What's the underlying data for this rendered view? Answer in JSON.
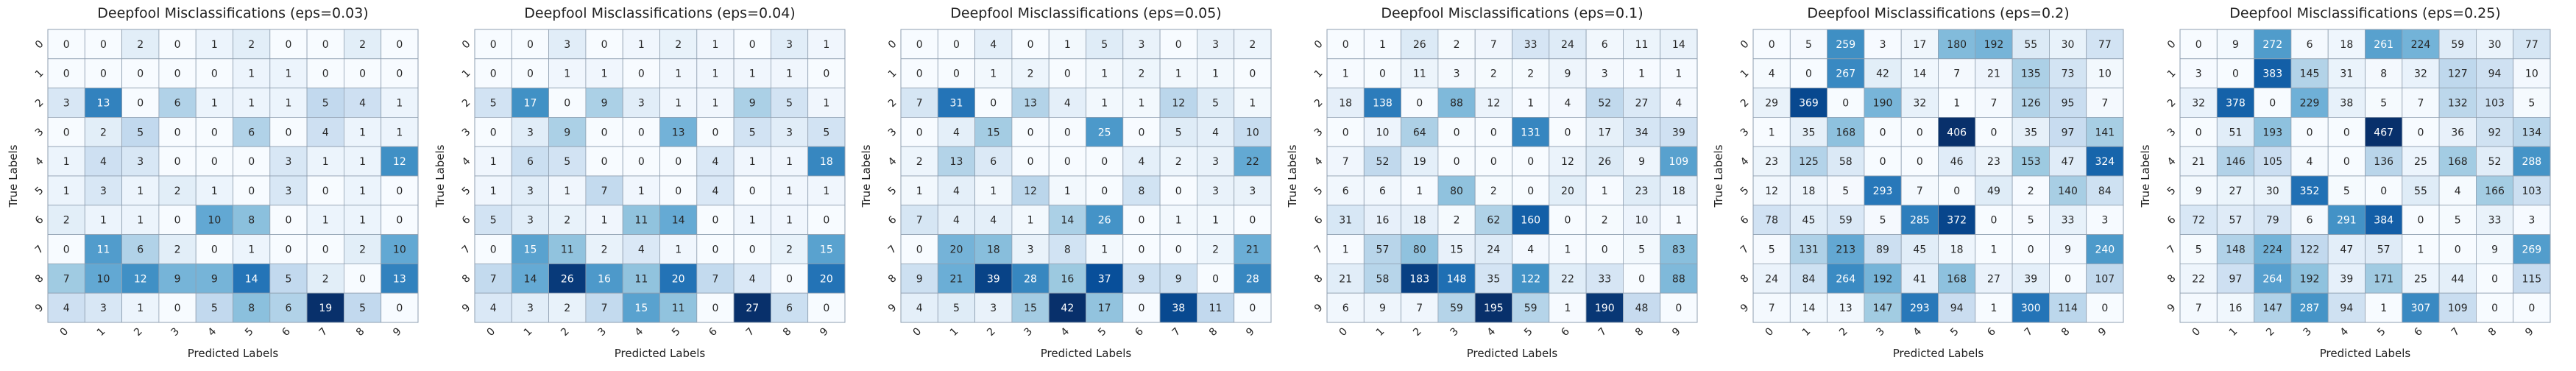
{
  "chart_data": [
    {
      "type": "heatmap",
      "title": "Deepfool Misclassifications (eps=0.03)",
      "xlabel": "Predicted Labels",
      "ylabel": "True Labels",
      "x_ticks": [
        "0",
        "1",
        "2",
        "3",
        "4",
        "5",
        "6",
        "7",
        "8",
        "9"
      ],
      "y_ticks": [
        "0",
        "1",
        "2",
        "3",
        "4",
        "5",
        "6",
        "7",
        "8",
        "9"
      ],
      "colormap": "Blues",
      "vmin": 0,
      "vmax": 19,
      "grid": true,
      "values": [
        [
          0,
          0,
          2,
          0,
          1,
          2,
          0,
          0,
          2,
          0
        ],
        [
          0,
          0,
          0,
          0,
          0,
          1,
          1,
          0,
          0,
          0
        ],
        [
          3,
          13,
          0,
          6,
          1,
          1,
          1,
          5,
          4,
          1
        ],
        [
          0,
          2,
          5,
          0,
          0,
          6,
          0,
          4,
          1,
          1
        ],
        [
          1,
          4,
          3,
          0,
          0,
          0,
          3,
          1,
          1,
          12
        ],
        [
          1,
          3,
          1,
          2,
          1,
          0,
          3,
          0,
          1,
          0
        ],
        [
          2,
          1,
          1,
          0,
          10,
          8,
          0,
          1,
          1,
          0
        ],
        [
          0,
          11,
          6,
          2,
          0,
          1,
          0,
          0,
          2,
          10
        ],
        [
          7,
          10,
          12,
          9,
          9,
          14,
          5,
          2,
          0,
          13
        ],
        [
          4,
          3,
          1,
          0,
          5,
          8,
          6,
          19,
          5,
          0
        ]
      ]
    },
    {
      "type": "heatmap",
      "title": "Deepfool Misclassifications (eps=0.04)",
      "xlabel": "Predicted Labels",
      "ylabel": "True Labels",
      "x_ticks": [
        "0",
        "1",
        "2",
        "3",
        "4",
        "5",
        "6",
        "7",
        "8",
        "9"
      ],
      "y_ticks": [
        "0",
        "1",
        "2",
        "3",
        "4",
        "5",
        "6",
        "7",
        "8",
        "9"
      ],
      "colormap": "Blues",
      "vmin": 0,
      "vmax": 27,
      "grid": true,
      "values": [
        [
          0,
          0,
          3,
          0,
          1,
          2,
          1,
          0,
          3,
          1
        ],
        [
          0,
          0,
          1,
          1,
          0,
          1,
          1,
          1,
          1,
          0
        ],
        [
          5,
          17,
          0,
          9,
          3,
          1,
          1,
          9,
          5,
          1
        ],
        [
          0,
          3,
          9,
          0,
          0,
          13,
          0,
          5,
          3,
          5
        ],
        [
          1,
          6,
          5,
          0,
          0,
          0,
          4,
          1,
          1,
          18
        ],
        [
          1,
          3,
          1,
          7,
          1,
          0,
          4,
          0,
          1,
          1
        ],
        [
          5,
          3,
          2,
          1,
          11,
          14,
          0,
          1,
          1,
          0
        ],
        [
          0,
          15,
          11,
          2,
          4,
          1,
          0,
          0,
          2,
          15
        ],
        [
          7,
          14,
          26,
          16,
          11,
          20,
          7,
          4,
          0,
          20
        ],
        [
          4,
          3,
          2,
          7,
          15,
          11,
          0,
          27,
          6,
          0
        ]
      ]
    },
    {
      "type": "heatmap",
      "title": "Deepfool Misclassifications (eps=0.05)",
      "xlabel": "Predicted Labels",
      "ylabel": "True Labels",
      "x_ticks": [
        "0",
        "1",
        "2",
        "3",
        "4",
        "5",
        "6",
        "7",
        "8",
        "9"
      ],
      "y_ticks": [
        "0",
        "1",
        "2",
        "3",
        "4",
        "5",
        "6",
        "7",
        "8",
        "9"
      ],
      "colormap": "Blues",
      "vmin": 0,
      "vmax": 42,
      "grid": true,
      "values": [
        [
          0,
          0,
          4,
          0,
          1,
          5,
          3,
          0,
          3,
          2
        ],
        [
          0,
          0,
          1,
          2,
          0,
          1,
          2,
          1,
          1,
          0
        ],
        [
          7,
          31,
          0,
          13,
          4,
          1,
          1,
          12,
          5,
          1
        ],
        [
          0,
          4,
          15,
          0,
          0,
          25,
          0,
          5,
          4,
          10
        ],
        [
          2,
          13,
          6,
          0,
          0,
          0,
          4,
          2,
          3,
          22
        ],
        [
          1,
          4,
          1,
          12,
          1,
          0,
          8,
          0,
          3,
          3
        ],
        [
          7,
          4,
          4,
          1,
          14,
          26,
          0,
          1,
          1,
          0
        ],
        [
          0,
          20,
          18,
          3,
          8,
          1,
          0,
          0,
          2,
          21
        ],
        [
          9,
          21,
          39,
          28,
          16,
          37,
          9,
          9,
          0,
          28
        ],
        [
          4,
          5,
          3,
          15,
          42,
          17,
          0,
          38,
          11,
          0
        ]
      ]
    },
    {
      "type": "heatmap",
      "title": "Deepfool Misclassifications (eps=0.1)",
      "xlabel": "Predicted Labels",
      "ylabel": "True Labels",
      "x_ticks": [
        "0",
        "1",
        "2",
        "3",
        "4",
        "5",
        "6",
        "7",
        "8",
        "9"
      ],
      "y_ticks": [
        "0",
        "1",
        "2",
        "3",
        "4",
        "5",
        "6",
        "7",
        "8",
        "9"
      ],
      "colormap": "Blues",
      "vmin": 0,
      "vmax": 195,
      "grid": true,
      "values": [
        [
          0,
          1,
          26,
          2,
          7,
          33,
          24,
          6,
          11,
          14
        ],
        [
          1,
          0,
          11,
          3,
          2,
          2,
          9,
          3,
          1,
          1
        ],
        [
          18,
          138,
          0,
          88,
          12,
          1,
          4,
          52,
          27,
          4
        ],
        [
          0,
          10,
          64,
          0,
          0,
          131,
          0,
          17,
          34,
          39
        ],
        [
          7,
          52,
          19,
          0,
          0,
          0,
          12,
          26,
          9,
          109
        ],
        [
          6,
          6,
          1,
          80,
          2,
          0,
          20,
          1,
          23,
          18
        ],
        [
          31,
          16,
          18,
          2,
          62,
          160,
          0,
          2,
          10,
          1
        ],
        [
          1,
          57,
          80,
          15,
          24,
          4,
          1,
          0,
          5,
          83
        ],
        [
          21,
          58,
          183,
          148,
          35,
          122,
          22,
          33,
          0,
          88
        ],
        [
          6,
          9,
          7,
          59,
          195,
          59,
          1,
          190,
          48,
          0
        ]
      ]
    },
    {
      "type": "heatmap",
      "title": "Deepfool Misclassifications (eps=0.2)",
      "xlabel": "Predicted Labels",
      "ylabel": "True Labels",
      "x_ticks": [
        "0",
        "1",
        "2",
        "3",
        "4",
        "5",
        "6",
        "7",
        "8",
        "9"
      ],
      "y_ticks": [
        "0",
        "1",
        "2",
        "3",
        "4",
        "5",
        "6",
        "7",
        "8",
        "9"
      ],
      "colormap": "Blues",
      "vmin": 0,
      "vmax": 406,
      "grid": true,
      "values": [
        [
          0,
          5,
          259,
          3,
          17,
          180,
          192,
          55,
          30,
          77
        ],
        [
          4,
          0,
          267,
          42,
          14,
          7,
          21,
          135,
          73,
          10
        ],
        [
          29,
          369,
          0,
          190,
          32,
          1,
          7,
          126,
          95,
          7
        ],
        [
          1,
          35,
          168,
          0,
          0,
          406,
          0,
          35,
          97,
          141
        ],
        [
          23,
          125,
          58,
          0,
          0,
          46,
          23,
          153,
          47,
          324
        ],
        [
          12,
          18,
          5,
          293,
          7,
          0,
          49,
          2,
          140,
          84
        ],
        [
          78,
          45,
          59,
          5,
          285,
          372,
          0,
          5,
          33,
          3
        ],
        [
          5,
          131,
          213,
          89,
          45,
          18,
          1,
          0,
          9,
          240
        ],
        [
          24,
          84,
          264,
          192,
          41,
          168,
          27,
          39,
          0,
          107
        ],
        [
          7,
          14,
          13,
          147,
          293,
          94,
          1,
          300,
          114,
          0
        ]
      ]
    },
    {
      "type": "heatmap",
      "title": "Deepfool Misclassifications (eps=0.25)",
      "xlabel": "Predicted Labels",
      "ylabel": "True Labels",
      "x_ticks": [
        "0",
        "1",
        "2",
        "3",
        "4",
        "5",
        "6",
        "7",
        "8",
        "9"
      ],
      "y_ticks": [
        "0",
        "1",
        "2",
        "3",
        "4",
        "5",
        "6",
        "7",
        "8",
        "9"
      ],
      "colormap": "Blues",
      "vmin": 0,
      "vmax": 467,
      "grid": true,
      "values": [
        [
          0,
          9,
          272,
          6,
          18,
          261,
          224,
          59,
          30,
          77
        ],
        [
          3,
          0,
          383,
          145,
          31,
          8,
          32,
          127,
          94,
          10
        ],
        [
          32,
          378,
          0,
          229,
          38,
          5,
          7,
          132,
          103,
          5
        ],
        [
          0,
          51,
          193,
          0,
          0,
          467,
          0,
          36,
          92,
          134
        ],
        [
          21,
          146,
          105,
          4,
          0,
          136,
          25,
          168,
          52,
          288
        ],
        [
          9,
          27,
          30,
          352,
          5,
          0,
          55,
          4,
          166,
          103
        ],
        [
          72,
          57,
          79,
          6,
          291,
          384,
          0,
          5,
          33,
          3
        ],
        [
          5,
          148,
          224,
          122,
          47,
          57,
          1,
          0,
          9,
          269
        ],
        [
          22,
          97,
          264,
          192,
          39,
          171,
          25,
          44,
          0,
          115
        ],
        [
          7,
          16,
          147,
          287,
          94,
          1,
          307,
          109,
          0,
          0
        ]
      ]
    }
  ]
}
